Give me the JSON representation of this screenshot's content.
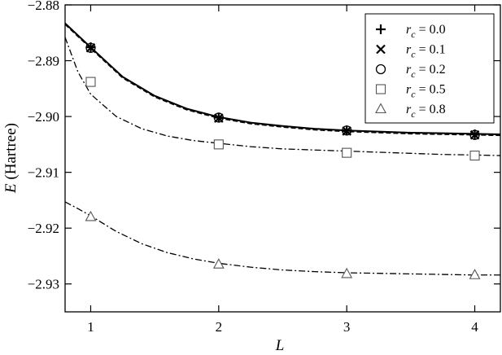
{
  "chart_data": {
    "type": "line",
    "xlabel": "L",
    "ylabel": "E (Hartree)",
    "ylabel_parts": {
      "symbol": "E",
      "unit": " (Hartree)"
    },
    "xlim": [
      0.8,
      4.2
    ],
    "ylim": [
      -2.935,
      -2.88
    ],
    "x_ticks": [
      1,
      2,
      3,
      4
    ],
    "x_tick_labels": [
      "1",
      "2",
      "3",
      "4"
    ],
    "y_ticks": [
      -2.88,
      -2.89,
      -2.9,
      -2.91,
      -2.92,
      -2.93
    ],
    "y_tick_labels": [
      "−2.88",
      "−2.89",
      "−2.90",
      "−2.91",
      "−2.92",
      "−2.93"
    ],
    "grid": false,
    "legend_position": "top-right",
    "series": [
      {
        "name": "r_c = 0.0",
        "label_symbol": "r",
        "label_sub": "c",
        "label_value": " = 0.0",
        "marker": "plus",
        "line_style": "solid",
        "x": [
          1,
          2,
          3,
          4
        ],
        "y": [
          -2.8876,
          -2.9002,
          -2.9025,
          -2.9032
        ],
        "curve": {
          "x": [
            0.8,
            1,
            1.25,
            1.5,
            1.75,
            2,
            2.25,
            2.5,
            2.75,
            3,
            3.25,
            3.5,
            3.75,
            4,
            4.2
          ],
          "y": [
            -2.8833,
            -2.8876,
            -2.8929,
            -2.8963,
            -2.8986,
            -2.9001,
            -2.9011,
            -2.9017,
            -2.9022,
            -2.9025,
            -2.9027,
            -2.9029,
            -2.903,
            -2.9031,
            -2.9032
          ]
        }
      },
      {
        "name": "r_c = 0.1",
        "label_symbol": "r",
        "label_sub": "c",
        "label_value": " = 0.1",
        "marker": "cross",
        "line_style": "dashed",
        "x": [
          1,
          2,
          3,
          4
        ],
        "y": [
          -2.8877,
          -2.9003,
          -2.9026,
          -2.9033
        ],
        "curve": {
          "x": [
            0.8,
            1,
            1.25,
            1.5,
            1.75,
            2,
            2.25,
            2.5,
            2.75,
            3,
            3.25,
            3.5,
            3.75,
            4,
            4.2
          ],
          "y": [
            -2.8835,
            -2.8878,
            -2.8931,
            -2.8965,
            -2.8988,
            -2.9003,
            -2.9013,
            -2.9019,
            -2.9024,
            -2.9027,
            -2.9029,
            -2.9031,
            -2.9032,
            -2.9033,
            -2.9034
          ]
        }
      },
      {
        "name": "r_c = 0.2",
        "label_symbol": "r",
        "label_sub": "c",
        "label_value": " = 0.2",
        "marker": "circle",
        "line_style": "dashed",
        "x": [
          1,
          2,
          3,
          4
        ],
        "y": [
          -2.8877,
          -2.9002,
          -2.9025,
          -2.9033
        ],
        "curve": null
      },
      {
        "name": "r_c = 0.5",
        "label_symbol": "r",
        "label_sub": "c",
        "label_value": " = 0.5",
        "marker": "square",
        "line_style": "dashdot",
        "x": [
          1,
          2,
          3,
          4
        ],
        "y": [
          -2.8938,
          -2.905,
          -2.9065,
          -2.907
        ],
        "curve": {
          "x": [
            0.8,
            0.9,
            1,
            1.2,
            1.4,
            1.6,
            1.8,
            2,
            2.25,
            2.5,
            2.75,
            3,
            3.25,
            3.5,
            3.75,
            4,
            4.2
          ],
          "y": [
            -2.8858,
            -2.892,
            -2.896,
            -2.9,
            -2.9022,
            -2.9035,
            -2.9043,
            -2.9048,
            -2.9054,
            -2.9058,
            -2.906,
            -2.9062,
            -2.9064,
            -2.9066,
            -2.9068,
            -2.9069,
            -2.907
          ]
        }
      },
      {
        "name": "r_c = 0.8",
        "label_symbol": "r",
        "label_sub": "c",
        "label_value": " = 0.8",
        "marker": "triangle",
        "line_style": "dashdot",
        "x": [
          1,
          2,
          3,
          4
        ],
        "y": [
          -2.918,
          -2.9265,
          -2.9282,
          -2.9284
        ],
        "curve": {
          "x": [
            0.8,
            0.9,
            1,
            1.2,
            1.4,
            1.6,
            1.8,
            2,
            2.25,
            2.5,
            2.75,
            3,
            3.25,
            3.5,
            3.75,
            4,
            4.2
          ],
          "y": [
            -2.9153,
            -2.9165,
            -2.9178,
            -2.9206,
            -2.9228,
            -2.9244,
            -2.9255,
            -2.9263,
            -2.927,
            -2.9275,
            -2.9278,
            -2.928,
            -2.9281,
            -2.9282,
            -2.9283,
            -2.9284,
            -2.9284
          ]
        }
      }
    ]
  }
}
